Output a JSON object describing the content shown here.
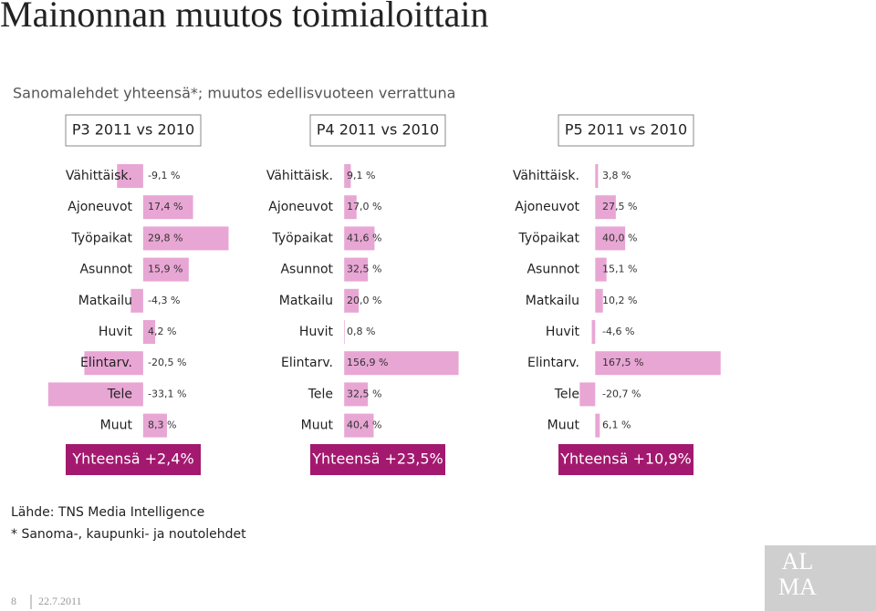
{
  "title": "Mainonnan muutos toimialoittain",
  "subtitle": "Sanomalehdet yhteensä*; muutos edellisvuoteen verrattuna",
  "source": "Lähde: TNS Media Intelligence",
  "footnote": "* Sanoma-, kaupunki- ja noutolehdet",
  "page": "8",
  "date": "22.7.2011",
  "logo": [
    "AL",
    "MA"
  ],
  "chart_data": [
    {
      "type": "bar",
      "orientation": "horizontal",
      "title": "P3 2011 vs 2010",
      "total": "Yhteensä +2,4%",
      "color": "#e8a6d4",
      "categories": [
        "Vähittäisk.",
        "Ajoneuvot",
        "Työpaikat",
        "Asunnot",
        "Matkailu",
        "Huvit",
        "Elintarv.",
        "Tele",
        "Muut"
      ],
      "values": [
        -9.1,
        17.4,
        29.8,
        15.9,
        -4.3,
        4.2,
        -20.5,
        -33.1,
        8.3
      ],
      "value_labels": [
        "-9,1 %",
        "17,4 %",
        "29,8 %",
        "15,9 %",
        "-4,3 %",
        "4,2 %",
        "-20,5 %",
        "-33,1 %",
        "8,3 %"
      ],
      "xlim": [
        -34,
        36
      ]
    },
    {
      "type": "bar",
      "orientation": "horizontal",
      "title": "P4 2011 vs 2010",
      "total": "Yhteensä +23,5%",
      "color": "#e8a6d4",
      "categories": [
        "Vähittäisk.",
        "Ajoneuvot",
        "Työpaikat",
        "Asunnot",
        "Matkailu",
        "Huvit",
        "Elintarv.",
        "Tele",
        "Muut"
      ],
      "values": [
        9.1,
        17.0,
        41.6,
        32.5,
        20.0,
        0.8,
        156.9,
        32.5,
        40.4
      ],
      "value_labels": [
        "9,1 %",
        "17,0 %",
        "41,6 %",
        "32,5 %",
        "20,0 %",
        "0,8 %",
        "156,9 %",
        "32,5 %",
        "40,4 %"
      ],
      "xlim": [
        -9,
        210
      ]
    },
    {
      "type": "bar",
      "orientation": "horizontal",
      "title": "P5 2011 vs 2010",
      "total": "Yhteensä +10,9%",
      "color": "#e8a6d4",
      "categories": [
        "Vähittäisk.",
        "Ajoneuvot",
        "Työpaikat",
        "Asunnot",
        "Matkailu",
        "Huvit",
        "Elintarv.",
        "Tele",
        "Muut"
      ],
      "values": [
        3.8,
        27.5,
        40.0,
        15.1,
        10.2,
        -4.6,
        167.5,
        -20.7,
        6.1
      ],
      "value_labels": [
        "3,8 %",
        "27,5 %",
        "40,0 %",
        "15,1 %",
        "10,2 %",
        "-4,6 %",
        "167,5 %",
        "-20,7 %",
        "6,1 %"
      ],
      "xlim": [
        -15,
        180
      ]
    }
  ]
}
